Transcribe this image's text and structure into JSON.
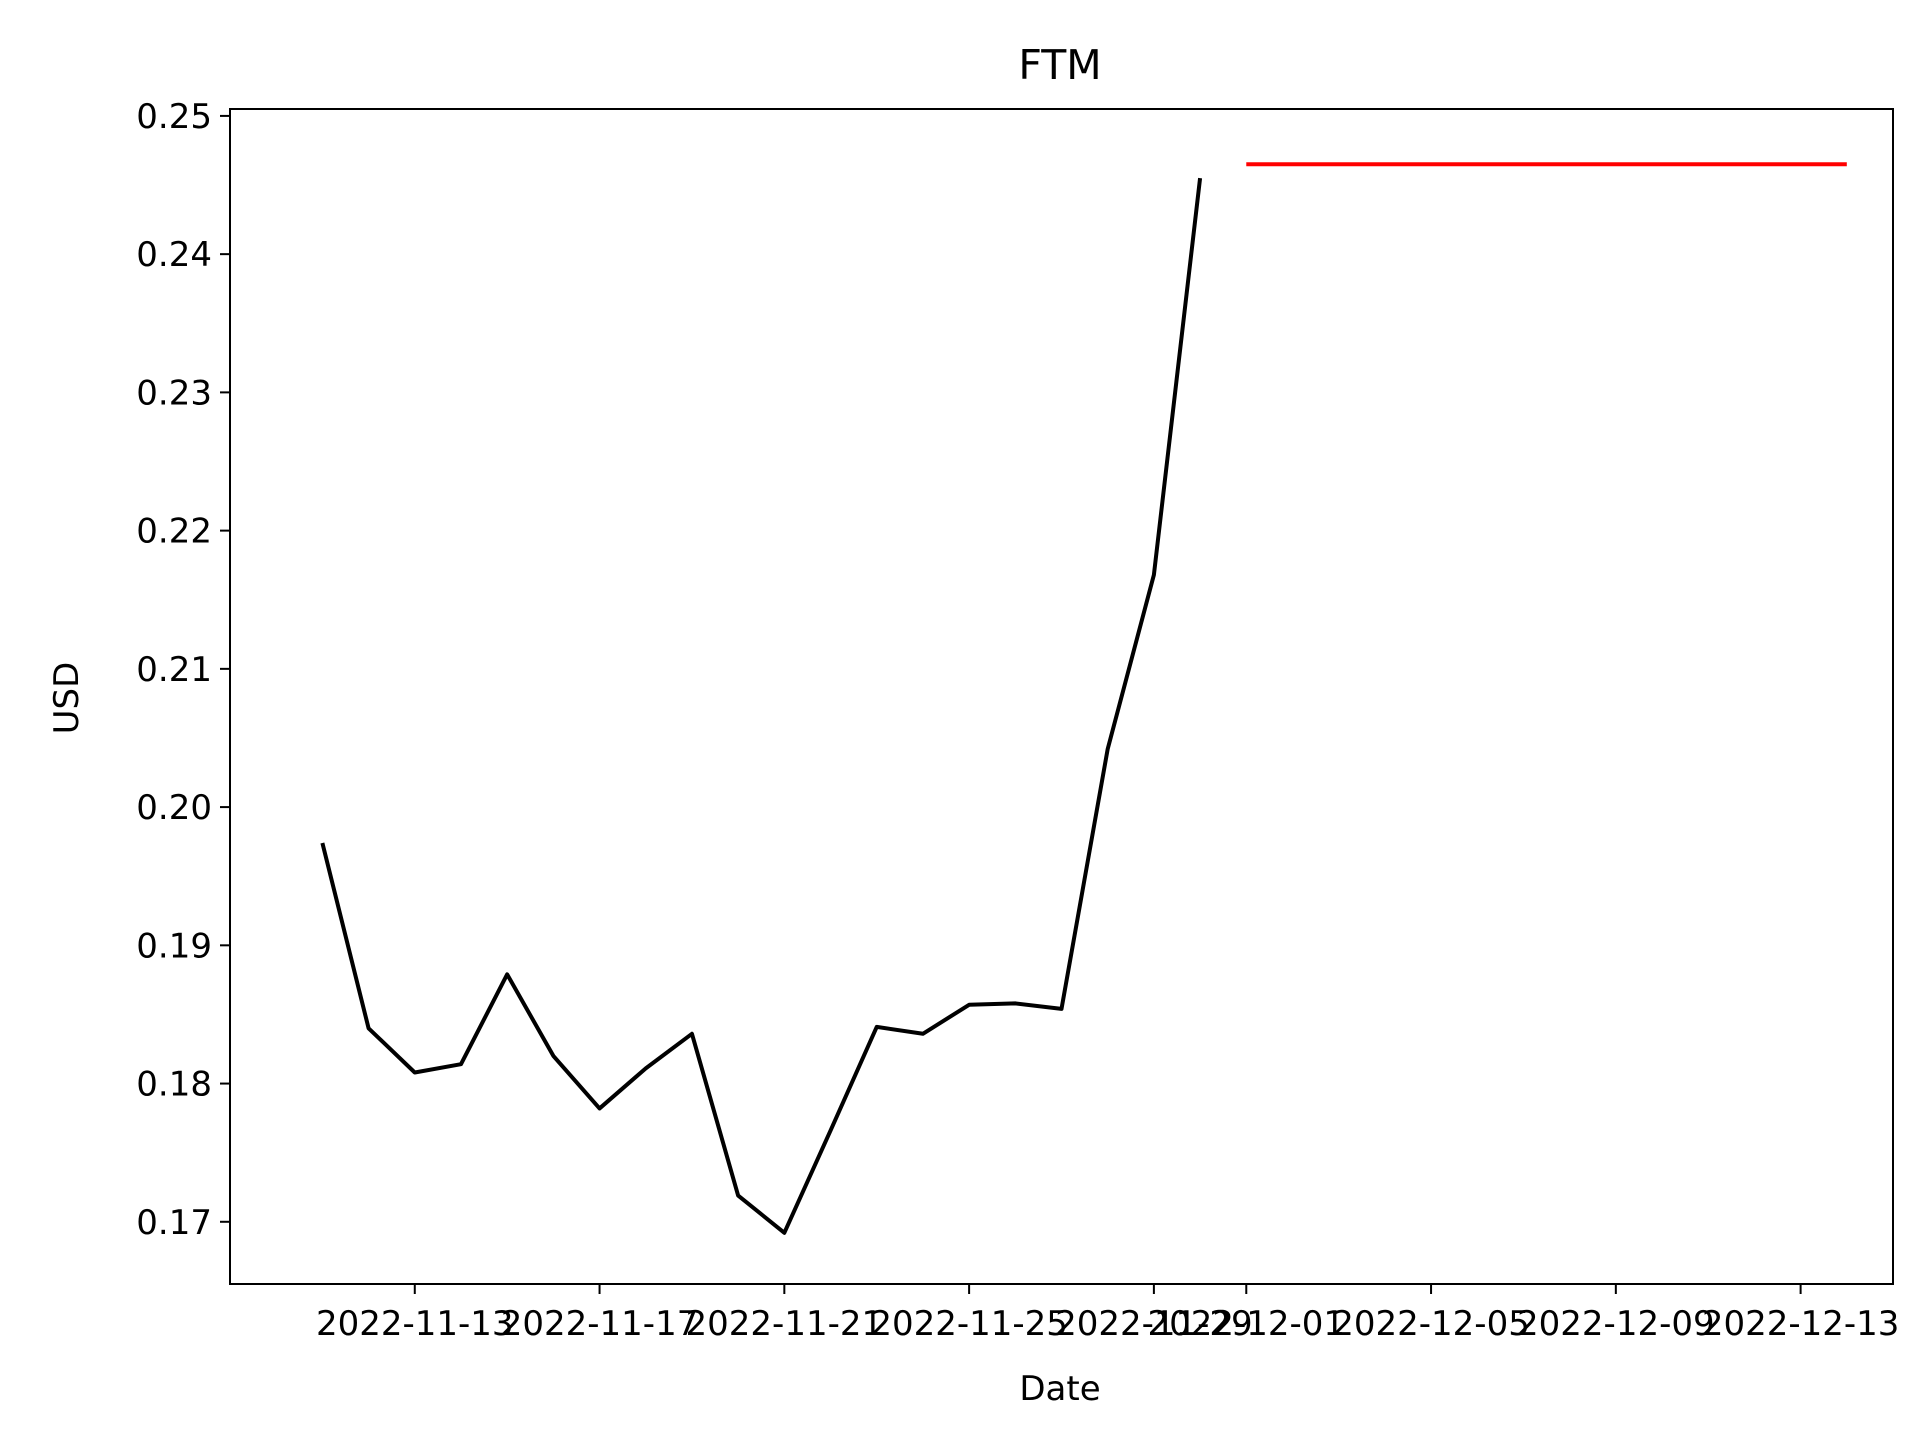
{
  "chart_data": {
    "type": "line",
    "title": "FTM",
    "xlabel": "Date",
    "ylabel": "USD",
    "xlim": [
      "2022-11-09",
      "2022-12-15"
    ],
    "ylim": [
      0.1655,
      0.2505
    ],
    "xticks": [
      "2022-11-13",
      "2022-11-17",
      "2022-11-21",
      "2022-11-25",
      "2022-11-29",
      "2022-12-01",
      "2022-12-05",
      "2022-12-09",
      "2022-12-13"
    ],
    "yticks": [
      "0.17",
      "0.18",
      "0.19",
      "0.20",
      "0.21",
      "0.22",
      "0.23",
      "0.24",
      "0.25"
    ],
    "grid": false,
    "series": [
      {
        "color": "#000000",
        "x": [
          "2022-11-11",
          "2022-11-12",
          "2022-11-13",
          "2022-11-14",
          "2022-11-15",
          "2022-11-16",
          "2022-11-17",
          "2022-11-18",
          "2022-11-19",
          "2022-11-20",
          "2022-11-21",
          "2022-11-22",
          "2022-11-23",
          "2022-11-24",
          "2022-11-25",
          "2022-11-26",
          "2022-11-27",
          "2022-11-28",
          "2022-11-29",
          "2022-11-30"
        ],
        "y": [
          0.1974,
          0.184,
          0.1808,
          0.1814,
          0.1879,
          0.182,
          0.1782,
          0.1811,
          0.1836,
          0.1719,
          0.1692,
          0.1766,
          0.1841,
          0.1836,
          0.1857,
          0.1858,
          0.1854,
          0.2042,
          0.2168,
          0.2455
        ]
      },
      {
        "color": "#ff0000",
        "x": [
          "2022-12-01",
          "2022-12-14"
        ],
        "y": [
          0.2465,
          0.2465
        ]
      }
    ]
  }
}
